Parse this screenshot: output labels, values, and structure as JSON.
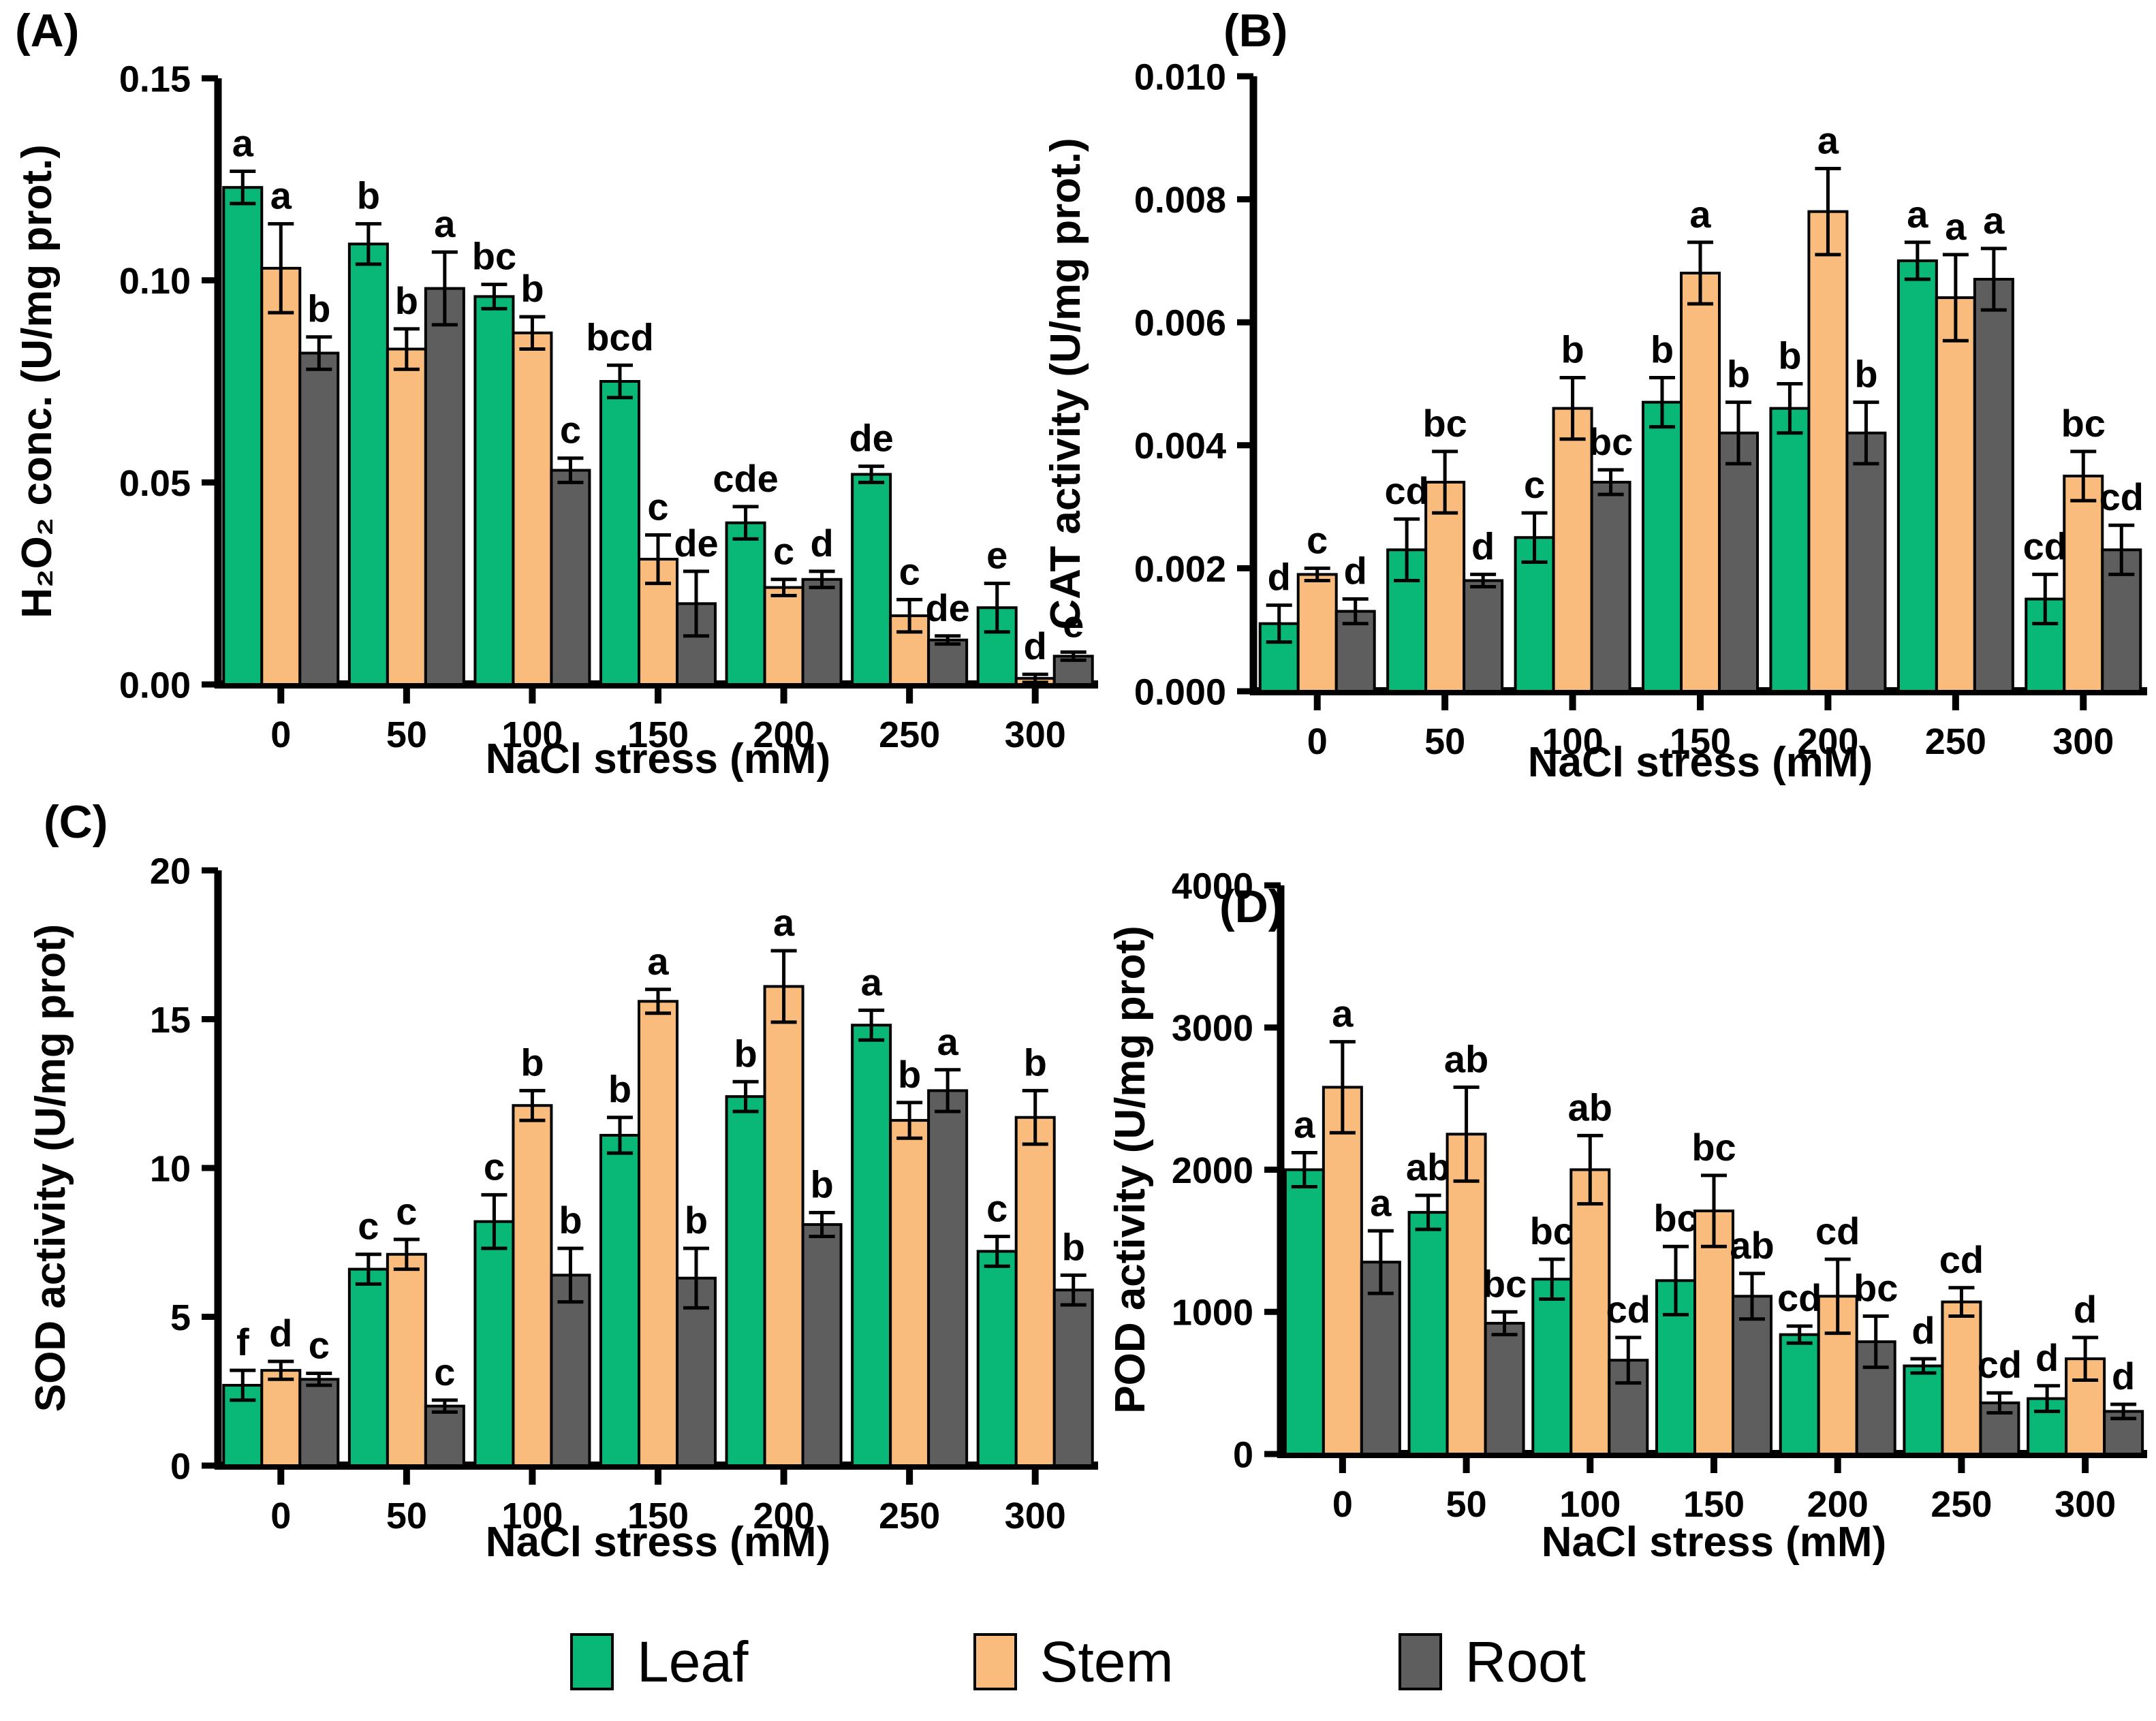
{
  "figure": {
    "panels": [
      {
        "label": "(A)"
      },
      {
        "label": "(B)"
      },
      {
        "label": "(C)"
      },
      {
        "label": "(D)"
      }
    ],
    "legend": {
      "items": [
        {
          "label": "Leaf",
          "color": "#09b776"
        },
        {
          "label": "Stem",
          "color": "#fabc7d"
        },
        {
          "label": "Root",
          "color": "#5e5e5e"
        }
      ]
    },
    "colors": {
      "axis": "#000000",
      "background": "#ffffff"
    }
  },
  "chart_data": [
    {
      "type": "bar",
      "panel": "(A)",
      "title": "",
      "xlabel": "NaCl stress (mM)",
      "ylabel": "H₂O₂ conc. (U/mg prot.)",
      "categories": [
        "0",
        "50",
        "100",
        "150",
        "200",
        "250",
        "300"
      ],
      "ylim": [
        0,
        0.15
      ],
      "yticks": [
        0,
        0.05,
        0.1,
        0.15
      ],
      "ytick_decimals": 2,
      "grid": false,
      "legend_position": "shared-bottom",
      "series": [
        {
          "name": "Leaf",
          "color": "#09b776",
          "values": [
            0.123,
            0.109,
            0.096,
            0.075,
            0.04,
            0.052,
            0.019
          ],
          "errors": [
            0.004,
            0.005,
            0.003,
            0.004,
            0.004,
            0.002,
            0.006
          ],
          "letters": [
            "a",
            "b",
            "bc",
            "bcd",
            "cde",
            "de",
            "e"
          ]
        },
        {
          "name": "Stem",
          "color": "#fabc7d",
          "values": [
            0.103,
            0.083,
            0.087,
            0.031,
            0.024,
            0.017,
            0.0015
          ],
          "errors": [
            0.011,
            0.005,
            0.004,
            0.006,
            0.002,
            0.004,
            0.001
          ],
          "letters": [
            "a",
            "b",
            "b",
            "c",
            "c",
            "c",
            "d"
          ]
        },
        {
          "name": "Root",
          "color": "#5e5e5e",
          "values": [
            0.082,
            0.098,
            0.053,
            0.02,
            0.026,
            0.011,
            0.007
          ],
          "errors": [
            0.004,
            0.009,
            0.003,
            0.008,
            0.002,
            0.001,
            0.001
          ],
          "letters": [
            "b",
            "a",
            "c",
            "de",
            "d",
            "de",
            "e"
          ]
        }
      ]
    },
    {
      "type": "bar",
      "panel": "(B)",
      "title": "",
      "xlabel": "NaCl stress (mM)",
      "ylabel": "CAT activity (U/mg prot.)",
      "categories": [
        "0",
        "50",
        "100",
        "150",
        "200",
        "250",
        "300"
      ],
      "ylim": [
        0,
        0.01
      ],
      "yticks": [
        0,
        0.002,
        0.004,
        0.006,
        0.008,
        0.01
      ],
      "ytick_decimals": 3,
      "grid": false,
      "legend_position": "shared-bottom",
      "series": [
        {
          "name": "Leaf",
          "color": "#09b776",
          "values": [
            0.0011,
            0.0023,
            0.0025,
            0.0047,
            0.0046,
            0.007,
            0.0015
          ],
          "errors": [
            0.0003,
            0.0005,
            0.0004,
            0.0004,
            0.0004,
            0.0003,
            0.0004
          ],
          "letters": [
            "d",
            "cd",
            "c",
            "b",
            "b",
            "a",
            "cd"
          ]
        },
        {
          "name": "Stem",
          "color": "#fabc7d",
          "values": [
            0.0019,
            0.0034,
            0.0046,
            0.0068,
            0.0078,
            0.0064,
            0.0035
          ],
          "errors": [
            0.0001,
            0.0005,
            0.0005,
            0.0005,
            0.0007,
            0.0007,
            0.0004
          ],
          "letters": [
            "c",
            "bc",
            "b",
            "a",
            "a",
            "a",
            "bc"
          ]
        },
        {
          "name": "Root",
          "color": "#5e5e5e",
          "values": [
            0.0013,
            0.0018,
            0.0034,
            0.0042,
            0.0042,
            0.0067,
            0.0023
          ],
          "errors": [
            0.0002,
            0.0001,
            0.0002,
            0.0005,
            0.0005,
            0.0005,
            0.0004
          ],
          "letters": [
            "d",
            "d",
            "bc",
            "b",
            "b",
            "a",
            "cd"
          ]
        }
      ]
    },
    {
      "type": "bar",
      "panel": "(C)",
      "title": "",
      "xlabel": "NaCl stress (mM)",
      "ylabel": "SOD activity (U/mg prot)",
      "categories": [
        "0",
        "50",
        "100",
        "150",
        "200",
        "250",
        "300"
      ],
      "ylim": [
        0,
        20
      ],
      "yticks": [
        0,
        5,
        10,
        15,
        20
      ],
      "ytick_decimals": 0,
      "grid": false,
      "legend_position": "shared-bottom",
      "series": [
        {
          "name": "Leaf",
          "color": "#09b776",
          "values": [
            2.7,
            6.6,
            8.2,
            11.1,
            12.4,
            14.8,
            7.2
          ],
          "errors": [
            0.5,
            0.5,
            0.9,
            0.6,
            0.5,
            0.5,
            0.5
          ],
          "letters": [
            "f",
            "c",
            "c",
            "b",
            "b",
            "a",
            "c"
          ]
        },
        {
          "name": "Stem",
          "color": "#fabc7d",
          "values": [
            3.2,
            7.1,
            12.1,
            15.6,
            16.1,
            11.6,
            11.7
          ],
          "errors": [
            0.3,
            0.5,
            0.5,
            0.4,
            1.2,
            0.6,
            0.9
          ],
          "letters": [
            "d",
            "c",
            "b",
            "a",
            "a",
            "b",
            "b"
          ]
        },
        {
          "name": "Root",
          "color": "#5e5e5e",
          "values": [
            2.9,
            2.0,
            6.4,
            6.3,
            8.1,
            12.6,
            5.9
          ],
          "errors": [
            0.2,
            0.2,
            0.9,
            1.0,
            0.4,
            0.7,
            0.5
          ],
          "letters": [
            "c",
            "c",
            "b",
            "b",
            "b",
            "a",
            "b"
          ]
        }
      ]
    },
    {
      "type": "bar",
      "panel": "(D)",
      "title": "",
      "xlabel": "NaCl stress (mM)",
      "ylabel": "POD activity (U/mg prot)",
      "categories": [
        "0",
        "50",
        "100",
        "150",
        "200",
        "250",
        "300"
      ],
      "ylim": [
        0,
        4000
      ],
      "yticks": [
        0,
        1000,
        2000,
        3000,
        4000
      ],
      "ytick_decimals": 0,
      "grid": false,
      "legend_position": "shared-bottom",
      "series": [
        {
          "name": "Leaf",
          "color": "#09b776",
          "values": [
            2000,
            1700,
            1230,
            1220,
            840,
            620,
            390
          ],
          "errors": [
            120,
            120,
            140,
            240,
            60,
            50,
            90
          ],
          "letters": [
            "a",
            "ab",
            "bc",
            "bc",
            "cd",
            "d",
            "d"
          ]
        },
        {
          "name": "Stem",
          "color": "#fabc7d",
          "values": [
            2580,
            2250,
            2000,
            1710,
            1110,
            1070,
            670
          ],
          "errors": [
            320,
            330,
            240,
            250,
            260,
            100,
            150
          ],
          "letters": [
            "a",
            "ab",
            "ab",
            "bc",
            "cd",
            "cd",
            "d"
          ]
        },
        {
          "name": "Root",
          "color": "#5e5e5e",
          "values": [
            1350,
            920,
            660,
            1110,
            790,
            360,
            300
          ],
          "errors": [
            220,
            80,
            160,
            160,
            180,
            70,
            50
          ],
          "letters": [
            "a",
            "bc",
            "cd",
            "ab",
            "bc",
            "cd",
            "d"
          ]
        }
      ]
    }
  ]
}
